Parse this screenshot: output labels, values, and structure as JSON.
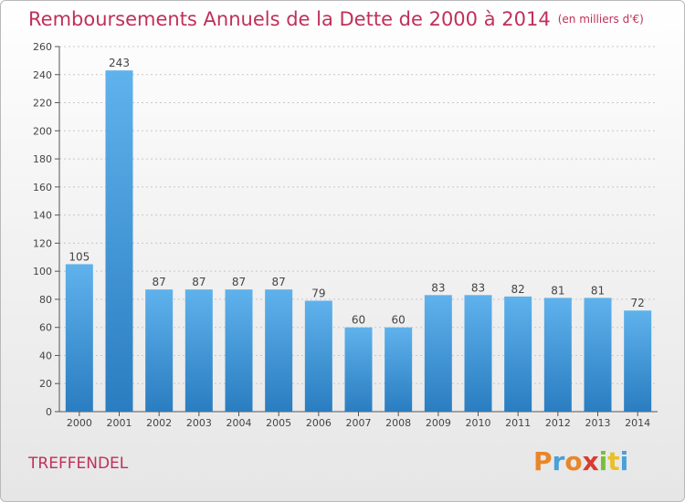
{
  "title": {
    "main": "Remboursements Annuels de la Dette de 2000 à 2014",
    "unit": "(en milliers d'€)"
  },
  "commune": "TREFFENDEL",
  "logo": {
    "letters": [
      "P",
      "r",
      "o",
      "x",
      "i",
      "t",
      "i"
    ],
    "colors": [
      "#e8862a",
      "#4aa0d8",
      "#e8862a",
      "#d93c2f",
      "#7bbd3a",
      "#e8c02a",
      "#4aa0d8"
    ]
  },
  "colors": {
    "bar_top": "#5fb2ec",
    "bar_bottom": "#2a7dc0",
    "title": "#c0305a"
  },
  "chart_data": {
    "type": "bar",
    "categories": [
      "2000",
      "2001",
      "2002",
      "2003",
      "2004",
      "2005",
      "2006",
      "2007",
      "2008",
      "2009",
      "2010",
      "2011",
      "2012",
      "2013",
      "2014"
    ],
    "values": [
      105,
      243,
      87,
      87,
      87,
      87,
      79,
      60,
      60,
      83,
      83,
      82,
      81,
      81,
      72
    ],
    "ylim": [
      0,
      260
    ],
    "yticks": [
      0,
      20,
      40,
      60,
      80,
      100,
      120,
      140,
      160,
      180,
      200,
      220,
      240,
      260
    ],
    "grid": true,
    "data_labels": true
  }
}
